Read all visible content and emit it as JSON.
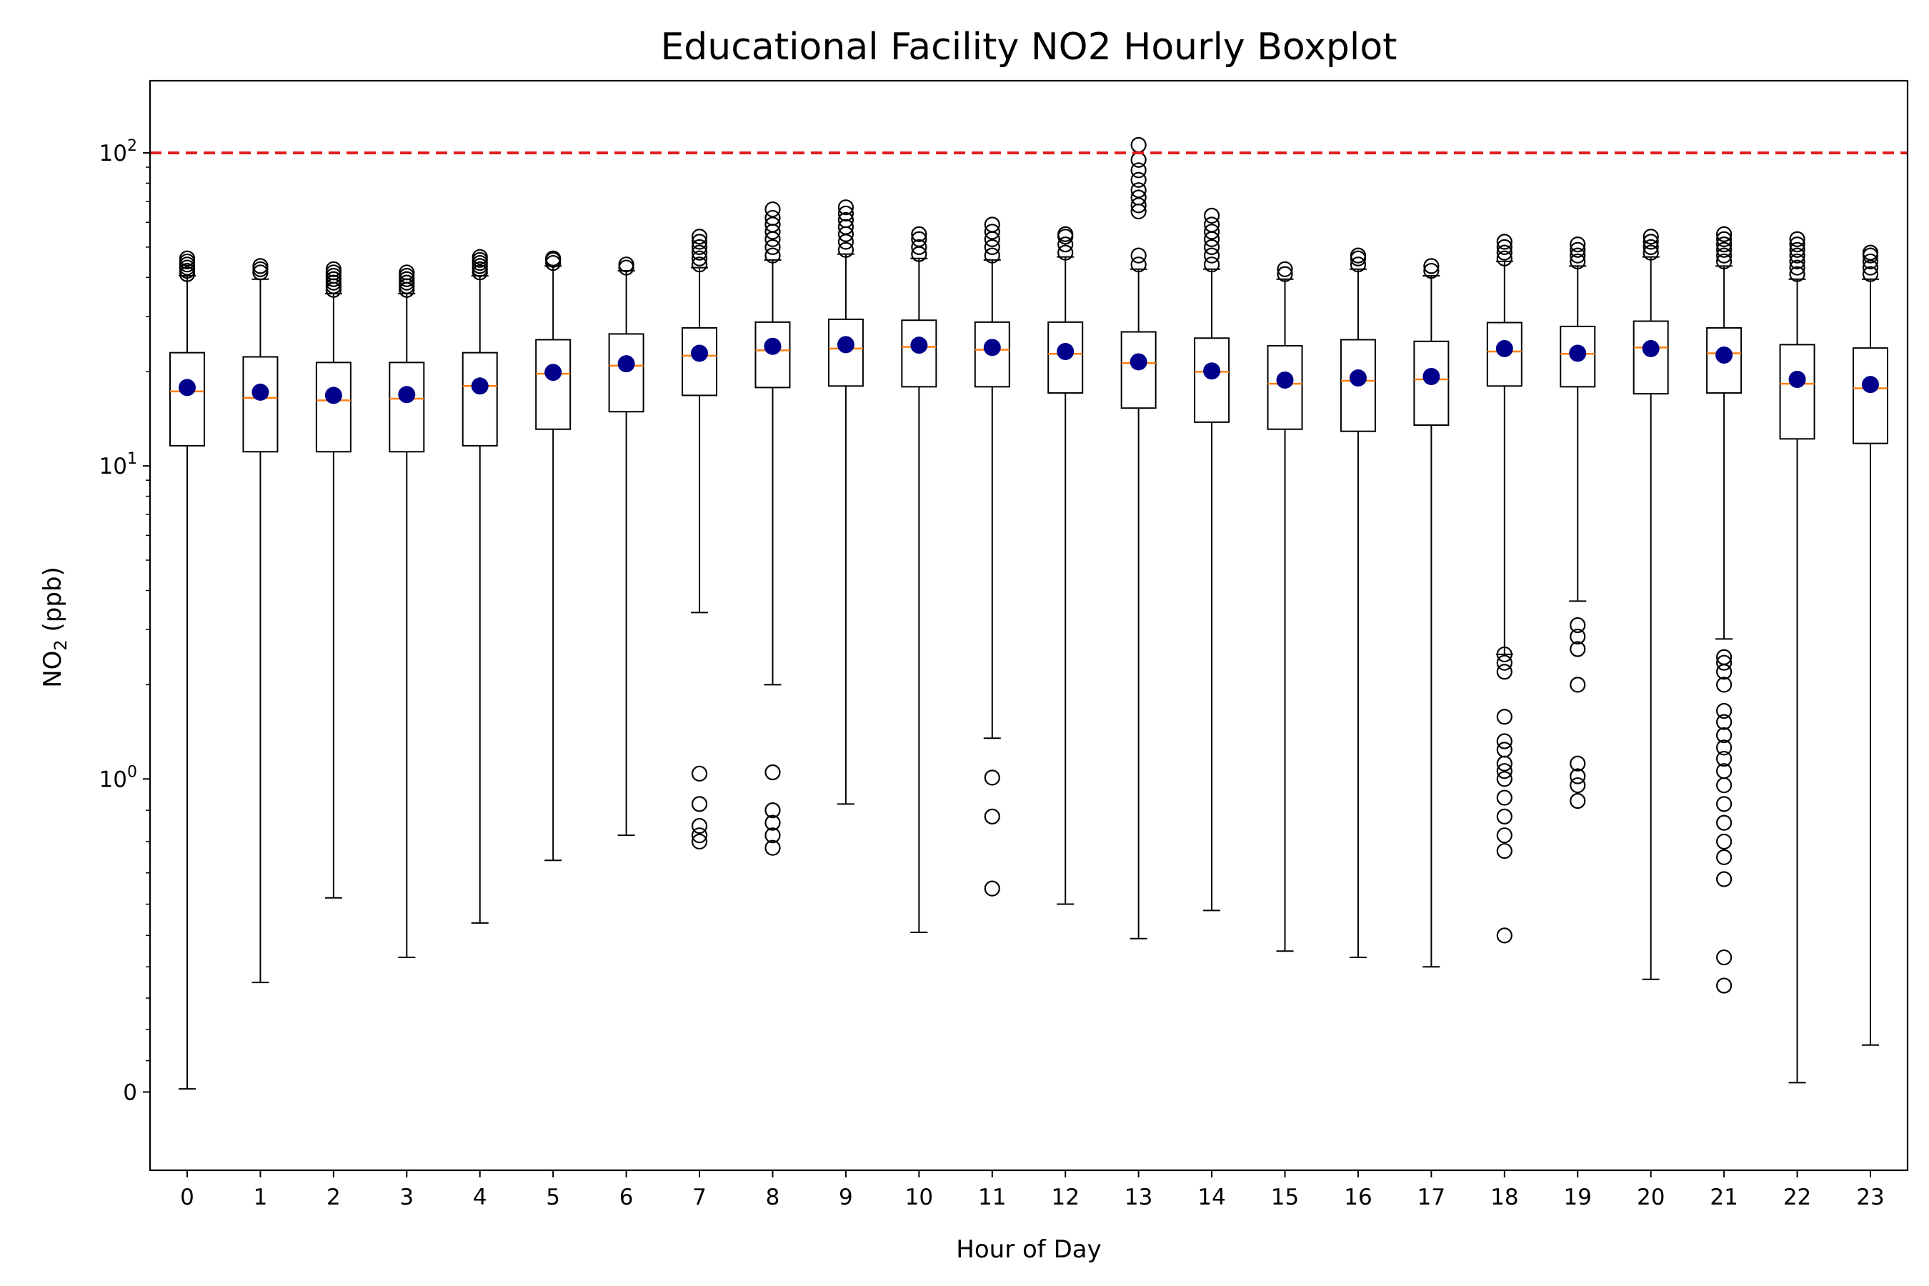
{
  "chart_data": {
    "type": "boxplot",
    "title": "Educational Facility NO2 Hourly Boxplot",
    "xlabel": "Hour of Day",
    "ylabel_main": "NO",
    "ylabel_sub": "2",
    "ylabel_unit": " (ppb)",
    "yscale": "symlog",
    "ylim": [
      -0.25,
      170
    ],
    "threshold": 100,
    "threshold_color": "#e41a1c",
    "median_color": "#ff7f0e",
    "mean_color": "#00008b",
    "yticks": [
      {
        "value": 0,
        "base": "0",
        "exp": ""
      },
      {
        "value": 1,
        "base": "10",
        "exp": "0"
      },
      {
        "value": 10,
        "base": "10",
        "exp": "1"
      },
      {
        "value": 100,
        "base": "10",
        "exp": "2"
      }
    ],
    "categories": [
      "0",
      "1",
      "2",
      "3",
      "4",
      "5",
      "6",
      "7",
      "8",
      "9",
      "10",
      "11",
      "12",
      "13",
      "14",
      "15",
      "16",
      "17",
      "18",
      "19",
      "20",
      "21",
      "22",
      "23"
    ],
    "boxes": [
      {
        "hour": "0",
        "whislo": 0.01,
        "q1": 11.6,
        "med": 17.3,
        "q3": 23.0,
        "whishi": 40.5,
        "mean": 17.8,
        "fliers": [
          41,
          42,
          43,
          44,
          45,
          46
        ]
      },
      {
        "hour": "1",
        "whislo": 0.35,
        "q1": 11.1,
        "med": 16.5,
        "q3": 22.3,
        "whishi": 39.5,
        "mean": 17.2,
        "fliers": [
          41.5,
          42.5,
          43.5
        ]
      },
      {
        "hour": "2",
        "whislo": 0.62,
        "q1": 11.1,
        "med": 16.2,
        "q3": 21.4,
        "whishi": 35.5,
        "mean": 16.8,
        "fliers": [
          36.5,
          37.5,
          38.5,
          39.5,
          40.5,
          41.5,
          42.5
        ]
      },
      {
        "hour": "3",
        "whislo": 0.43,
        "q1": 11.1,
        "med": 16.4,
        "q3": 21.4,
        "whishi": 35.5,
        "mean": 16.9,
        "fliers": [
          36.5,
          37.5,
          38.5,
          39.5,
          40.5,
          41.5
        ]
      },
      {
        "hour": "4",
        "whislo": 0.54,
        "q1": 11.6,
        "med": 18.0,
        "q3": 23.0,
        "whishi": 40.5,
        "mean": 18.0,
        "fliers": [
          41.5,
          42.5,
          43.5,
          44.5,
          45.5,
          46.5
        ]
      },
      {
        "hour": "5",
        "whislo": 0.74,
        "q1": 13.1,
        "med": 19.7,
        "q3": 25.3,
        "whishi": 43.5,
        "mean": 19.9,
        "fliers": [
          44.5,
          45.5,
          46.0
        ]
      },
      {
        "hour": "6",
        "whislo": 0.82,
        "q1": 14.9,
        "med": 20.9,
        "q3": 26.4,
        "whishi": 42.0,
        "mean": 21.2,
        "fliers": [
          43.0,
          44.0
        ]
      },
      {
        "hour": "7",
        "whislo": 3.4,
        "q1": 16.8,
        "med": 22.5,
        "q3": 27.6,
        "whishi": 43.0,
        "mean": 22.9,
        "fliers": [
          0.8,
          0.82,
          0.85,
          0.92,
          1.04,
          44,
          46,
          48,
          50,
          52,
          54
        ]
      },
      {
        "hour": "8",
        "whislo": 2.0,
        "q1": 17.8,
        "med": 23.4,
        "q3": 28.8,
        "whishi": 45.5,
        "mean": 24.1,
        "fliers": [
          0.78,
          0.82,
          0.86,
          0.9,
          1.05,
          47,
          50,
          53,
          56,
          59,
          62,
          66
        ]
      },
      {
        "hour": "9",
        "whislo": 0.92,
        "q1": 18.0,
        "med": 23.7,
        "q3": 29.4,
        "whishi": 47.5,
        "mean": 24.4,
        "fliers": [
          49,
          52,
          55,
          58,
          61,
          64,
          67
        ]
      },
      {
        "hour": "10",
        "whislo": 0.51,
        "q1": 17.9,
        "med": 24.0,
        "q3": 29.2,
        "whishi": 46.0,
        "mean": 24.3,
        "fliers": [
          47.5,
          50,
          53,
          55
        ]
      },
      {
        "hour": "11",
        "whislo": 1.35,
        "q1": 17.9,
        "med": 23.5,
        "q3": 28.8,
        "whishi": 45.5,
        "mean": 23.9,
        "fliers": [
          0.65,
          0.88,
          1.01,
          47,
          50,
          53,
          56,
          59
        ]
      },
      {
        "hour": "12",
        "whislo": 0.6,
        "q1": 17.1,
        "med": 22.8,
        "q3": 28.8,
        "whishi": 46.5,
        "mean": 23.2,
        "fliers": [
          48,
          51,
          54,
          55
        ]
      },
      {
        "hour": "13",
        "whislo": 0.49,
        "q1": 15.3,
        "med": 21.3,
        "q3": 26.8,
        "whishi": 42.5,
        "mean": 21.5,
        "fliers": [
          44,
          47,
          65,
          68,
          72,
          76,
          82,
          88,
          95,
          106
        ]
      },
      {
        "hour": "14",
        "whislo": 0.58,
        "q1": 13.8,
        "med": 20.0,
        "q3": 25.6,
        "whishi": 42.5,
        "mean": 20.1,
        "fliers": [
          44,
          47,
          50,
          53,
          56,
          59,
          63
        ]
      },
      {
        "hour": "15",
        "whislo": 0.45,
        "q1": 13.1,
        "med": 18.3,
        "q3": 24.2,
        "whishi": 39.5,
        "mean": 18.8,
        "fliers": [
          41,
          42.5
        ]
      },
      {
        "hour": "16",
        "whislo": 0.43,
        "q1": 12.9,
        "med": 18.7,
        "q3": 25.3,
        "whishi": 42.5,
        "mean": 19.1,
        "fliers": [
          44,
          46,
          47
        ]
      },
      {
        "hour": "17",
        "whislo": 0.4,
        "q1": 13.5,
        "med": 18.9,
        "q3": 25.0,
        "whishi": 40.5,
        "mean": 19.3,
        "fliers": [
          42,
          43.5
        ]
      },
      {
        "hour": "18",
        "whislo": 2.5,
        "q1": 18.0,
        "med": 23.2,
        "q3": 28.7,
        "whishi": 45.0,
        "mean": 23.7,
        "fliers": [
          0.5,
          0.77,
          0.82,
          0.88,
          0.94,
          1.0,
          1.06,
          1.12,
          1.24,
          1.32,
          1.58,
          2.2,
          2.35,
          2.5,
          46,
          48,
          50,
          52
        ]
      },
      {
        "hour": "19",
        "whislo": 3.7,
        "q1": 17.9,
        "med": 22.8,
        "q3": 27.9,
        "whishi": 43.5,
        "mean": 22.9,
        "fliers": [
          0.93,
          0.98,
          1.02,
          1.12,
          2.0,
          2.6,
          2.85,
          3.1,
          45,
          47,
          49,
          51
        ]
      },
      {
        "hour": "20",
        "whislo": 0.36,
        "q1": 17.0,
        "med": 23.9,
        "q3": 29.0,
        "whishi": 46.5,
        "mean": 23.7,
        "fliers": [
          48,
          50,
          52,
          54
        ]
      },
      {
        "hour": "21",
        "whislo": 2.8,
        "q1": 17.1,
        "med": 22.9,
        "q3": 27.6,
        "whishi": 43.5,
        "mean": 22.6,
        "fliers": [
          0.34,
          0.43,
          0.68,
          0.75,
          0.8,
          0.86,
          0.92,
          0.98,
          1.06,
          1.16,
          1.26,
          1.38,
          1.52,
          1.65,
          2.0,
          2.2,
          2.35,
          2.45,
          45,
          47,
          49,
          51,
          53,
          55
        ]
      },
      {
        "hour": "22",
        "whislo": 0.03,
        "q1": 12.2,
        "med": 18.3,
        "q3": 24.4,
        "whishi": 39.5,
        "mean": 18.9,
        "fliers": [
          41,
          43,
          45,
          47,
          49,
          51,
          53
        ]
      },
      {
        "hour": "23",
        "whislo": 0.15,
        "q1": 11.8,
        "med": 17.7,
        "q3": 23.8,
        "whishi": 39.5,
        "mean": 18.2,
        "fliers": [
          41,
          43,
          45,
          47,
          48
        ]
      }
    ]
  }
}
